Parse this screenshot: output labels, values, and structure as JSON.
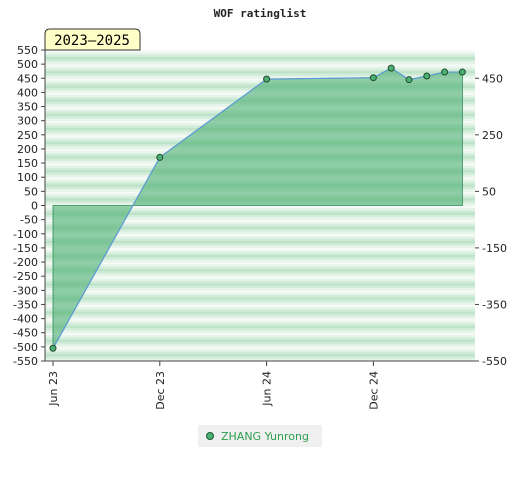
{
  "chart_data": {
    "type": "area",
    "title": "WOF ratinglist",
    "period_label": "2023–2025",
    "left_axis": {
      "ylim": [
        -550,
        550
      ],
      "ticks": [
        550,
        500,
        450,
        400,
        350,
        300,
        250,
        200,
        150,
        100,
        50,
        0,
        -50,
        -100,
        -150,
        -200,
        -250,
        -300,
        -350,
        -400,
        -450,
        -500,
        -550
      ]
    },
    "right_axis": {
      "ticks": [
        450,
        250,
        50,
        -150,
        -350,
        -550
      ]
    },
    "x_ticks": [
      "Jun 23",
      "Dec 23",
      "Jun 24",
      "Dec 24"
    ],
    "xlabel": "",
    "ylabel": "",
    "grid": true,
    "legend_position": "bottom",
    "series": [
      {
        "name": "ZHANG Yunrong",
        "color": "#4caf73",
        "x": [
          "2023-06",
          "2023-12",
          "2024-06",
          "2024-12",
          "2025-01",
          "2025-02",
          "2025-03",
          "2025-04",
          "2025-05"
        ],
        "values": [
          -505,
          170,
          447,
          452,
          486,
          445,
          458,
          472,
          472
        ]
      }
    ]
  }
}
